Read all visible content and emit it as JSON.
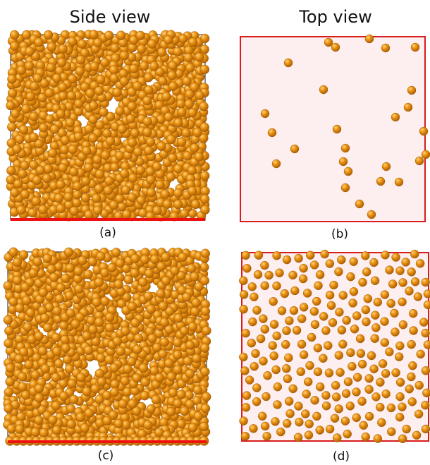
{
  "headers": {
    "left": "Side view",
    "right": "Top view"
  },
  "panels": [
    {
      "id": "a",
      "label": "(a)",
      "view": "side"
    },
    {
      "id": "b",
      "label": "(b)",
      "view": "top"
    },
    {
      "id": "c",
      "label": "(c)",
      "view": "side"
    },
    {
      "id": "d",
      "label": "(d)",
      "view": "top"
    }
  ],
  "colors": {
    "particle": "#e8900f",
    "particle_highlight": "#ffd27a",
    "particle_edge": "#a85e06",
    "surface_line": "#ee1111",
    "top_fill": "#fdeef0",
    "top_border": "#d81c1c",
    "side_border": "#222222"
  }
}
